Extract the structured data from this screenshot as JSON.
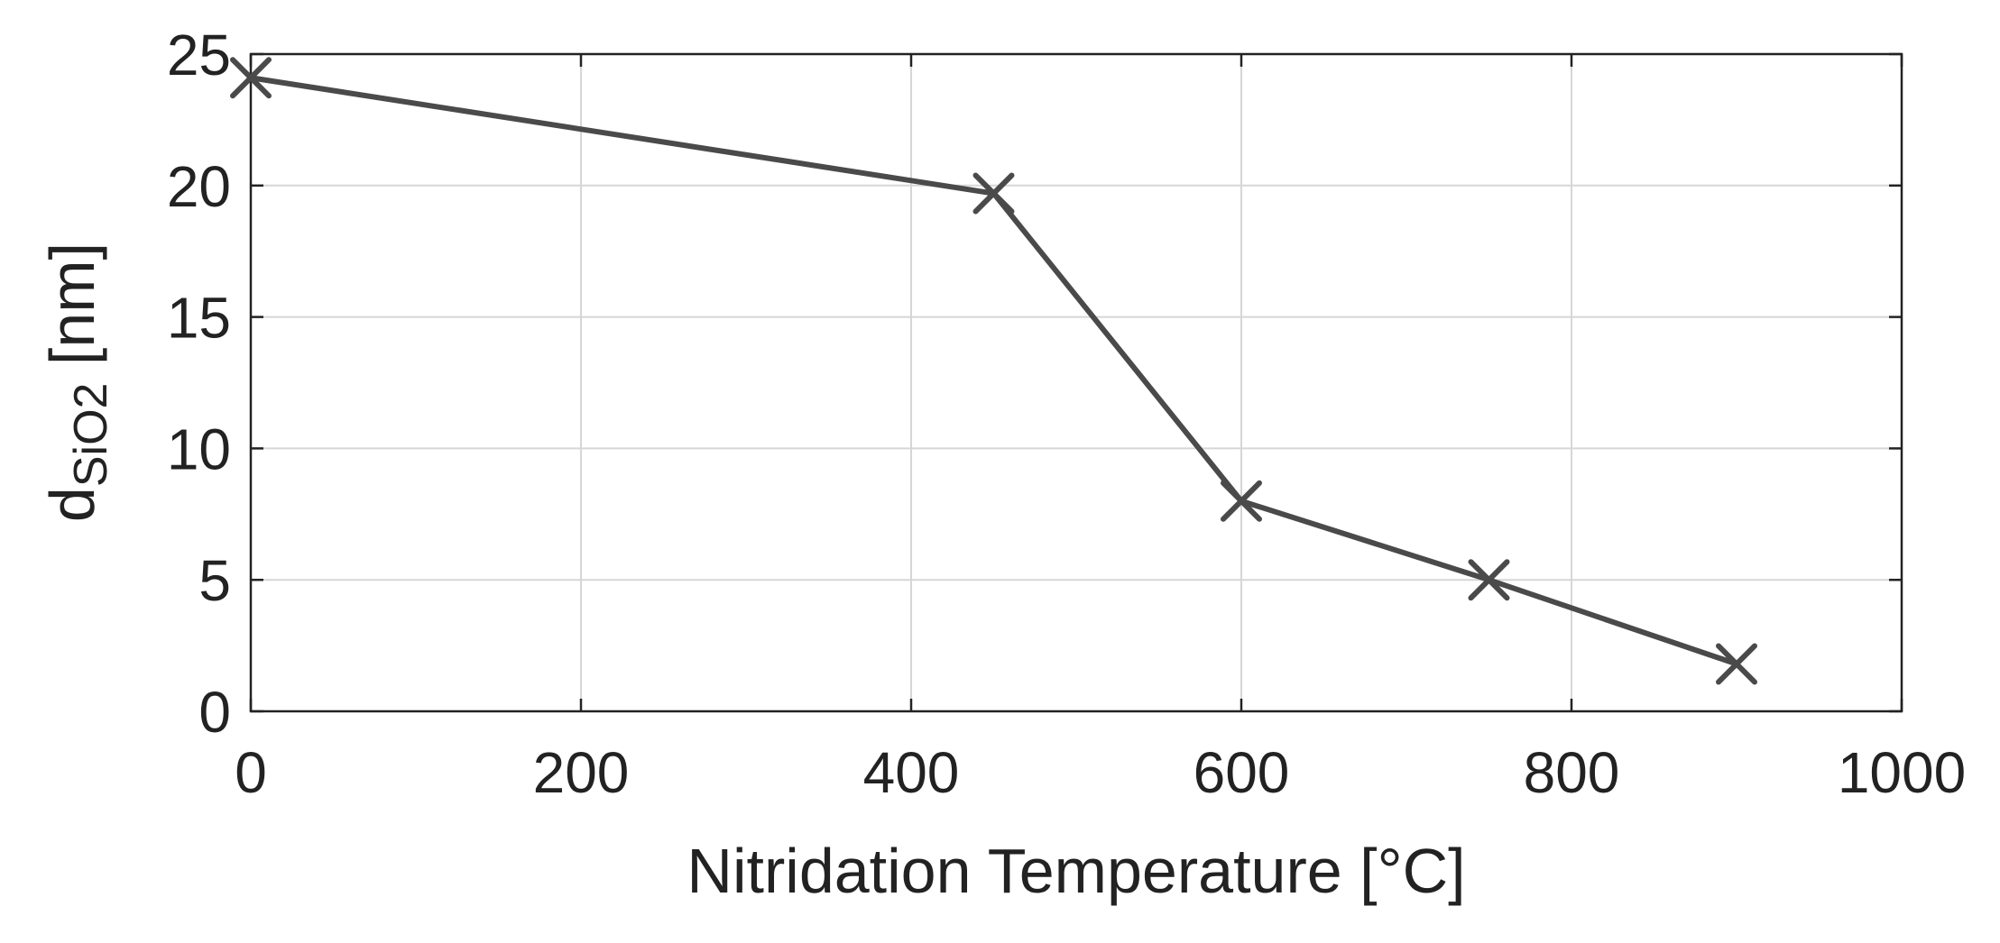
{
  "chart_data": {
    "type": "line",
    "title": "",
    "xlabel": "Nitridation Temperature [°C]",
    "ylabel": {
      "main": "d",
      "subscript": "SiO2",
      "unit": " [nm]"
    },
    "xlim": [
      0,
      1000
    ],
    "ylim": [
      0,
      25
    ],
    "xticks": [
      0,
      200,
      400,
      600,
      800,
      1000
    ],
    "yticks": [
      0,
      5,
      10,
      15,
      20,
      25
    ],
    "xtick_labels": [
      "0",
      "200",
      "400",
      "600",
      "800",
      "1000"
    ],
    "ytick_labels": [
      "0",
      "5",
      "10",
      "15",
      "20",
      "25"
    ],
    "grid": true,
    "series": [
      {
        "name": "d_SiO2",
        "marker": "x",
        "color": "#4a4a4a",
        "x": [
          0,
          450,
          600,
          750,
          900
        ],
        "y": [
          24.1,
          19.7,
          8.0,
          5.0,
          1.8
        ]
      }
    ]
  }
}
